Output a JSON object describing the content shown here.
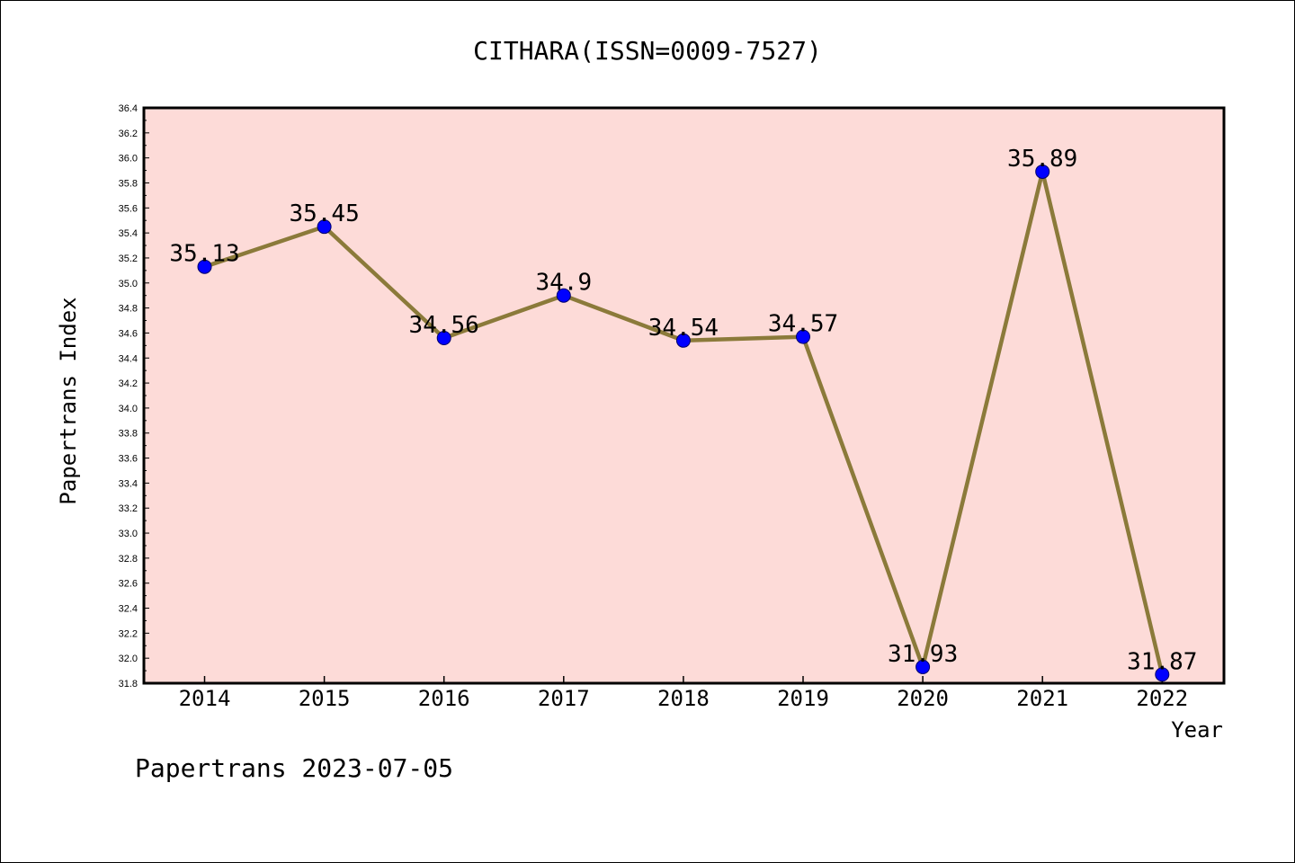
{
  "chart_data": {
    "type": "line",
    "title": "CITHARA(ISSN=0009-7527)",
    "xlabel": "Year",
    "ylabel": "Papertrans Index",
    "categories": [
      "2014",
      "2015",
      "2016",
      "2017",
      "2018",
      "2019",
      "2020",
      "2021",
      "2022"
    ],
    "values": [
      35.13,
      35.45,
      34.56,
      34.9,
      34.54,
      34.57,
      31.93,
      35.89,
      31.87
    ],
    "data_labels": [
      "35.13",
      "35.45",
      "34.56",
      "34.9",
      "34.54",
      "34.57",
      "31.93",
      "35.89",
      "31.87"
    ],
    "ylim": [
      31.8,
      36.4
    ],
    "yticks": [
      "31.8",
      "32.0",
      "32.2",
      "32.4",
      "32.6",
      "32.8",
      "33.0",
      "33.2",
      "33.4",
      "33.6",
      "33.8",
      "34.0",
      "34.2",
      "34.4",
      "34.6",
      "34.8",
      "35.0",
      "35.2",
      "35.4",
      "35.6",
      "35.8",
      "36.0",
      "36.2",
      "36.4"
    ],
    "grid": false,
    "colors": {
      "plot_background": "#fddbd8",
      "line": "#8b7a3a",
      "marker": "#0000ff"
    }
  },
  "footer": "Papertrans 2023-07-05"
}
